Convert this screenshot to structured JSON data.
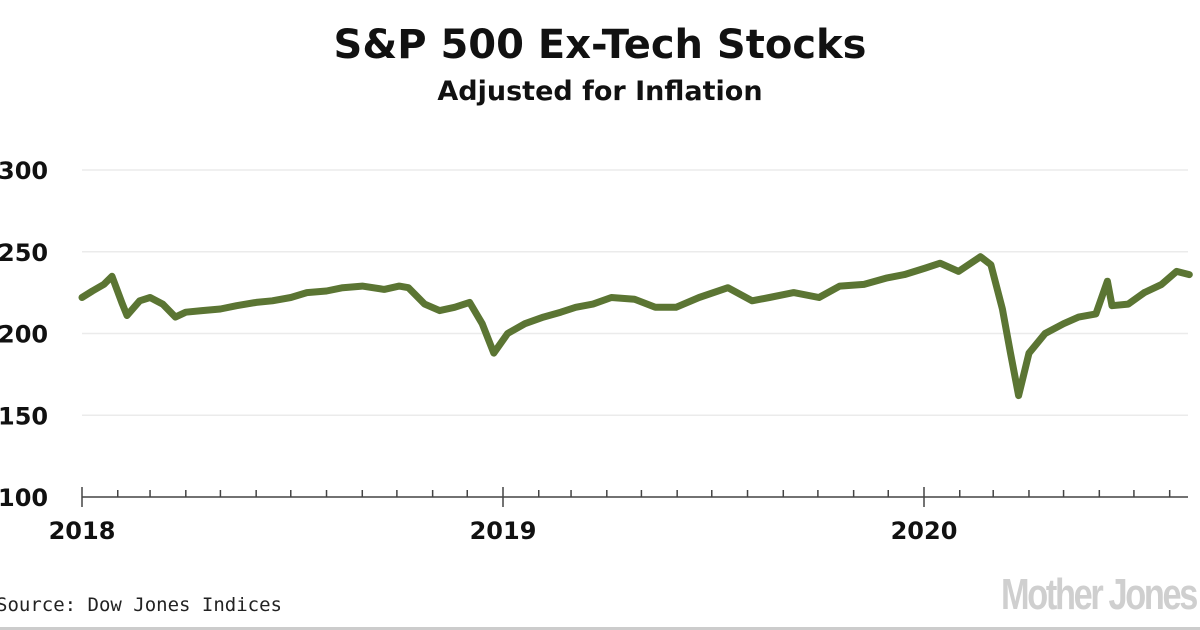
{
  "chart_data": {
    "type": "line",
    "title": "S&P 500 Ex-Tech Stocks",
    "subtitle": "Adjusted for Inflation",
    "xlabel": "",
    "ylabel": "",
    "ylim": [
      100,
      300
    ],
    "yticks": [
      "300",
      "250",
      "200",
      "150",
      "100"
    ],
    "xticks": [
      "2018",
      "2019",
      "2020"
    ],
    "xlim": [
      "2018-01-01",
      "2020-08-20"
    ],
    "grid": true,
    "line_color": "#5b7533",
    "series": [
      {
        "x": [
          "2018-01-01",
          "2018-01-10",
          "2018-01-20",
          "2018-01-27",
          "2018-02-05",
          "2018-02-09",
          "2018-02-20",
          "2018-03-01",
          "2018-03-12",
          "2018-03-23",
          "2018-04-01",
          "2018-04-15",
          "2018-05-01",
          "2018-05-15",
          "2018-06-01",
          "2018-06-15",
          "2018-07-01",
          "2018-07-15",
          "2018-08-01",
          "2018-08-15",
          "2018-09-01",
          "2018-09-20",
          "2018-10-03",
          "2018-10-11",
          "2018-10-25",
          "2018-11-07",
          "2018-11-20",
          "2018-12-03",
          "2018-12-14",
          "2018-12-24",
          "2019-01-05",
          "2019-01-20",
          "2019-02-05",
          "2019-02-20",
          "2019-03-05",
          "2019-03-20",
          "2019-04-05",
          "2019-04-25",
          "2019-05-13",
          "2019-05-31",
          "2019-06-20",
          "2019-07-15",
          "2019-08-05",
          "2019-08-20",
          "2019-09-10",
          "2019-10-02",
          "2019-10-20",
          "2019-11-10",
          "2019-11-30",
          "2019-12-15",
          "2020-01-02",
          "2020-01-15",
          "2020-01-31",
          "2020-02-19",
          "2020-02-28",
          "2020-03-09",
          "2020-03-16",
          "2020-03-23",
          "2020-04-01",
          "2020-04-15",
          "2020-05-01",
          "2020-05-14",
          "2020-05-29",
          "2020-06-08",
          "2020-06-12",
          "2020-06-26",
          "2020-07-10",
          "2020-07-25",
          "2020-08-07",
          "2020-08-18"
        ],
        "y": [
          222,
          226,
          230,
          235,
          218,
          211,
          220,
          222,
          218,
          210,
          213,
          214,
          215,
          217,
          219,
          220,
          222,
          225,
          226,
          228,
          229,
          227,
          229,
          228,
          218,
          214,
          216,
          219,
          206,
          188,
          200,
          206,
          210,
          213,
          216,
          218,
          222,
          221,
          216,
          216,
          222,
          228,
          220,
          222,
          225,
          222,
          229,
          230,
          234,
          236,
          240,
          243,
          238,
          247,
          242,
          215,
          188,
          162,
          188,
          200,
          206,
          210,
          212,
          232,
          217,
          218,
          225,
          230,
          238,
          236
        ]
      }
    ]
  },
  "source": "Source: Dow Jones Indices",
  "logo": "Mother Jones"
}
